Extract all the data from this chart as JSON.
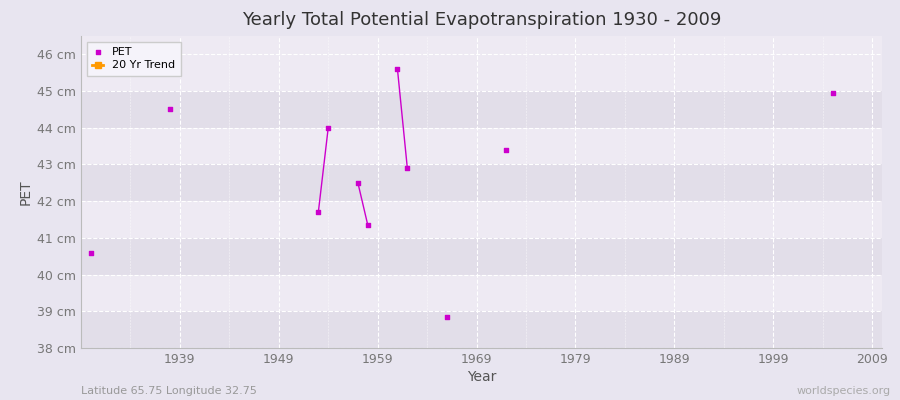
{
  "title": "Yearly Total Potential Evapotranspiration 1930 - 2009",
  "xlabel": "Year",
  "ylabel": "PET",
  "subtitle": "Latitude 65.75 Longitude 32.75",
  "watermark": "worldspecies.org",
  "background_color": "#e8e5f0",
  "plot_bg_color_light": "#eeeaf3",
  "plot_bg_color_dark": "#e2dee9",
  "grid_color": "#ffffff",
  "pet_color": "#cc00cc",
  "trend_color": "#ff9900",
  "ylim_min": 38,
  "ylim_max": 46.5,
  "xlim_min": 1929,
  "xlim_max": 2010,
  "yticks": [
    38,
    39,
    40,
    41,
    42,
    43,
    44,
    45,
    46
  ],
  "xticks": [
    1939,
    1949,
    1959,
    1969,
    1979,
    1989,
    1999,
    2009
  ],
  "pet_data": [
    [
      1930,
      40.6
    ],
    [
      1938,
      44.5
    ],
    [
      1953,
      41.7
    ],
    [
      1954,
      44.0
    ],
    [
      1957,
      42.5
    ],
    [
      1958,
      41.35
    ],
    [
      1961,
      45.6
    ],
    [
      1962,
      42.9
    ],
    [
      1966,
      38.85
    ],
    [
      1972,
      43.4
    ],
    [
      2005,
      44.95
    ]
  ],
  "connected_segments": [
    [
      [
        1953,
        41.7
      ],
      [
        1954,
        44.0
      ]
    ],
    [
      [
        1957,
        42.5
      ],
      [
        1958,
        41.35
      ]
    ],
    [
      [
        1961,
        45.6
      ],
      [
        1962,
        42.9
      ]
    ]
  ]
}
